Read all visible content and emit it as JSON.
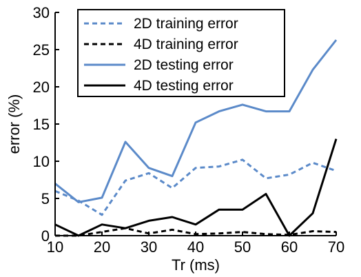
{
  "chart_data": {
    "type": "line",
    "xlabel": "Tr (ms)",
    "ylabel": "error (%)",
    "xlim": [
      10,
      70
    ],
    "ylim": [
      0,
      30
    ],
    "xticks": [
      10,
      20,
      30,
      40,
      50,
      60,
      70
    ],
    "yticks": [
      0,
      5,
      10,
      15,
      20,
      25,
      30
    ],
    "grid": false,
    "legend_position": "top-right",
    "x": [
      10,
      15,
      20,
      25,
      30,
      35,
      40,
      45,
      50,
      55,
      60,
      65,
      70
    ],
    "series": [
      {
        "name": "2D training error",
        "color": "#5b8ac9",
        "dash": "dashed",
        "values": [
          6.0,
          4.7,
          2.8,
          7.4,
          8.4,
          6.4,
          9.1,
          9.3,
          10.2,
          7.7,
          8.2,
          9.8,
          8.7
        ]
      },
      {
        "name": "4D training error",
        "color": "#000000",
        "dash": "dashed",
        "values": [
          0.0,
          0.0,
          0.5,
          1.0,
          0.3,
          0.8,
          0.2,
          0.3,
          0.5,
          0.2,
          0.1,
          0.6,
          0.5
        ]
      },
      {
        "name": "2D testing error",
        "color": "#5b8ac9",
        "dash": "solid",
        "values": [
          7.0,
          4.5,
          5.1,
          12.6,
          9.1,
          8.0,
          15.2,
          16.7,
          17.6,
          16.7,
          16.7,
          22.3,
          26.3
        ]
      },
      {
        "name": "4D testing error",
        "color": "#000000",
        "dash": "solid",
        "values": [
          1.5,
          0.0,
          1.5,
          1.0,
          2.0,
          2.5,
          1.5,
          3.5,
          3.5,
          5.6,
          0.0,
          3.0,
          13.0
        ]
      }
    ]
  }
}
